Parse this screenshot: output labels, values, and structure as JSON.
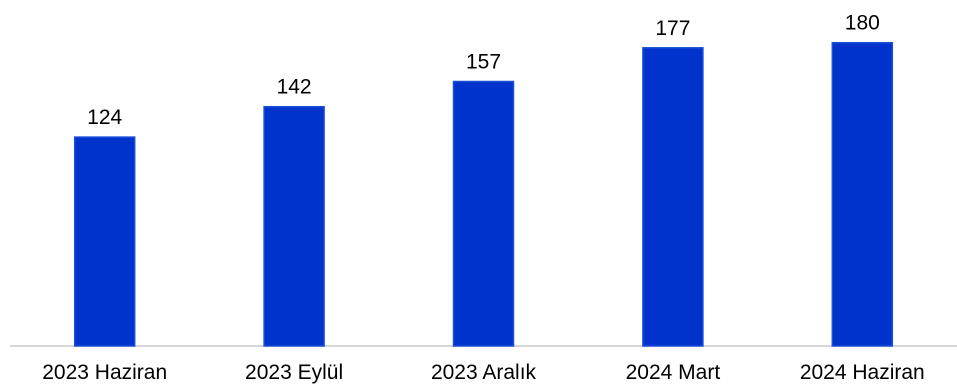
{
  "chart_data": {
    "type": "bar",
    "categories": [
      "2023 Haziran",
      "2023 Eylül",
      "2023 Aralık",
      "2024 Mart",
      "2024 Haziran"
    ],
    "values": [
      124,
      142,
      157,
      177,
      180
    ],
    "title": "",
    "xlabel": "",
    "ylabel": "",
    "ylim": [
      0,
      200
    ],
    "grid": false,
    "legend": "none",
    "data_labels": true,
    "colors": {
      "bar_fill": "#0033cc",
      "bar_stroke": "#1a4fd6",
      "axis": "#c8c8c8"
    }
  }
}
